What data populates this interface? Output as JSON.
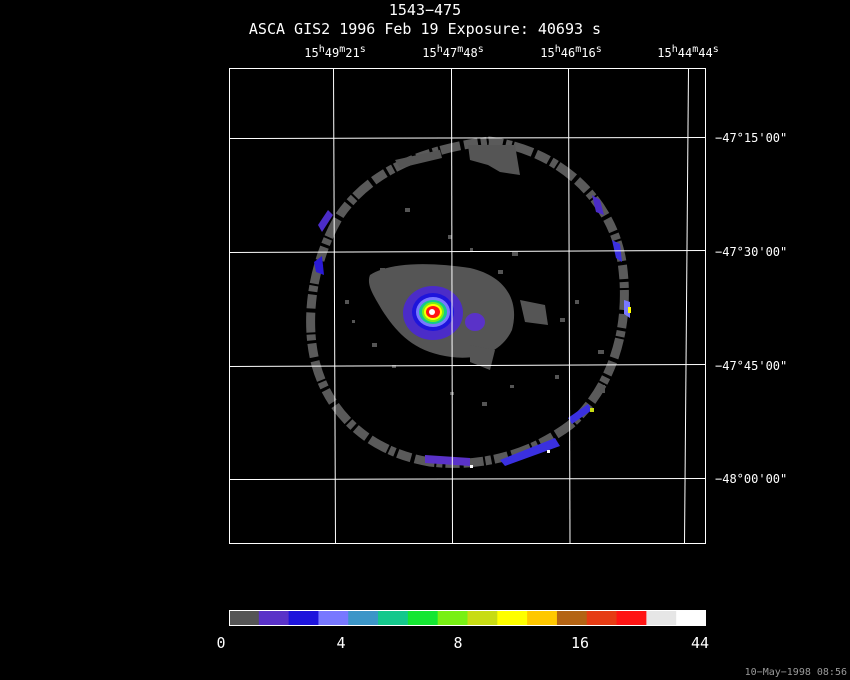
{
  "header": {
    "title": "1543−475",
    "subtitle": "ASCA GIS2   1996 Feb 19    Exposure: 40693 s"
  },
  "axes": {
    "ra_labels": [
      {
        "h": "15",
        "m": "49",
        "s": "21"
      },
      {
        "h": "15",
        "m": "47",
        "s": "48"
      },
      {
        "h": "15",
        "m": "46",
        "s": "16"
      },
      {
        "h": "15",
        "m": "44",
        "s": "44"
      }
    ],
    "dec_labels": [
      "−47°15'00\"",
      "−47°30'00\"",
      "−47°45'00\"",
      "−48°00'00\""
    ]
  },
  "colorbar": {
    "colors": [
      "#555555",
      "#5a32c8",
      "#1e14dc",
      "#7878ff",
      "#3c96c8",
      "#14c88c",
      "#14e632",
      "#78f014",
      "#c8dc14",
      "#ffff00",
      "#ffc800",
      "#b46414",
      "#e63c14",
      "#ff1414",
      "#e6e6e6",
      "#ffffff"
    ],
    "tick_labels": [
      "0",
      "4",
      "8",
      "16",
      "44"
    ]
  },
  "footer": {
    "timestamp": "10−May−1998 08:56"
  }
}
